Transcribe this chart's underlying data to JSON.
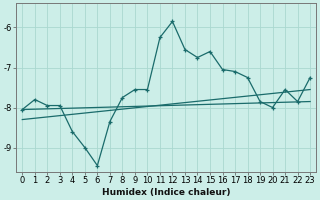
{
  "xlabel": "Humidex (Indice chaleur)",
  "bg_color": "#cceee8",
  "line_color": "#1a6b6b",
  "grid_color": "#aad8d0",
  "xlim": [
    -0.5,
    23.5
  ],
  "ylim": [
    -9.6,
    -5.4
  ],
  "yticks": [
    -9,
    -8,
    -7,
    -6
  ],
  "xticks": [
    0,
    1,
    2,
    3,
    4,
    5,
    6,
    7,
    8,
    9,
    10,
    11,
    12,
    13,
    14,
    15,
    16,
    17,
    18,
    19,
    20,
    21,
    22,
    23
  ],
  "series1_x": [
    0,
    1,
    2,
    3,
    4,
    5,
    6,
    7,
    8,
    9,
    10,
    11,
    12,
    13,
    14,
    15,
    16,
    17,
    18,
    19,
    20,
    21,
    22,
    23
  ],
  "series1_y": [
    -8.05,
    -7.8,
    -7.95,
    -7.95,
    -8.6,
    -9.0,
    -9.45,
    -8.35,
    -7.75,
    -7.55,
    -7.55,
    -6.25,
    -5.85,
    -6.55,
    -6.75,
    -6.6,
    -7.05,
    -7.1,
    -7.25,
    -7.85,
    -8.0,
    -7.55,
    -7.85,
    -7.25
  ],
  "series2_x": [
    0,
    23
  ],
  "series2_y": [
    -8.3,
    -7.55
  ],
  "series3_x": [
    0,
    23
  ],
  "series3_y": [
    -8.05,
    -7.85
  ],
  "marker_x": [
    0,
    1,
    2,
    3,
    4,
    5,
    6,
    7,
    8,
    9,
    10,
    11,
    12,
    13,
    14,
    15,
    16,
    17,
    18,
    19,
    20,
    21,
    22,
    23
  ],
  "marker_y": [
    -8.05,
    -7.8,
    -7.95,
    -7.95,
    -8.6,
    -9.0,
    -9.45,
    -8.35,
    -7.75,
    -7.55,
    -7.55,
    -6.25,
    -5.85,
    -6.55,
    -6.75,
    -6.6,
    -7.05,
    -7.1,
    -7.25,
    -7.85,
    -8.0,
    -7.55,
    -7.85,
    -7.25
  ]
}
